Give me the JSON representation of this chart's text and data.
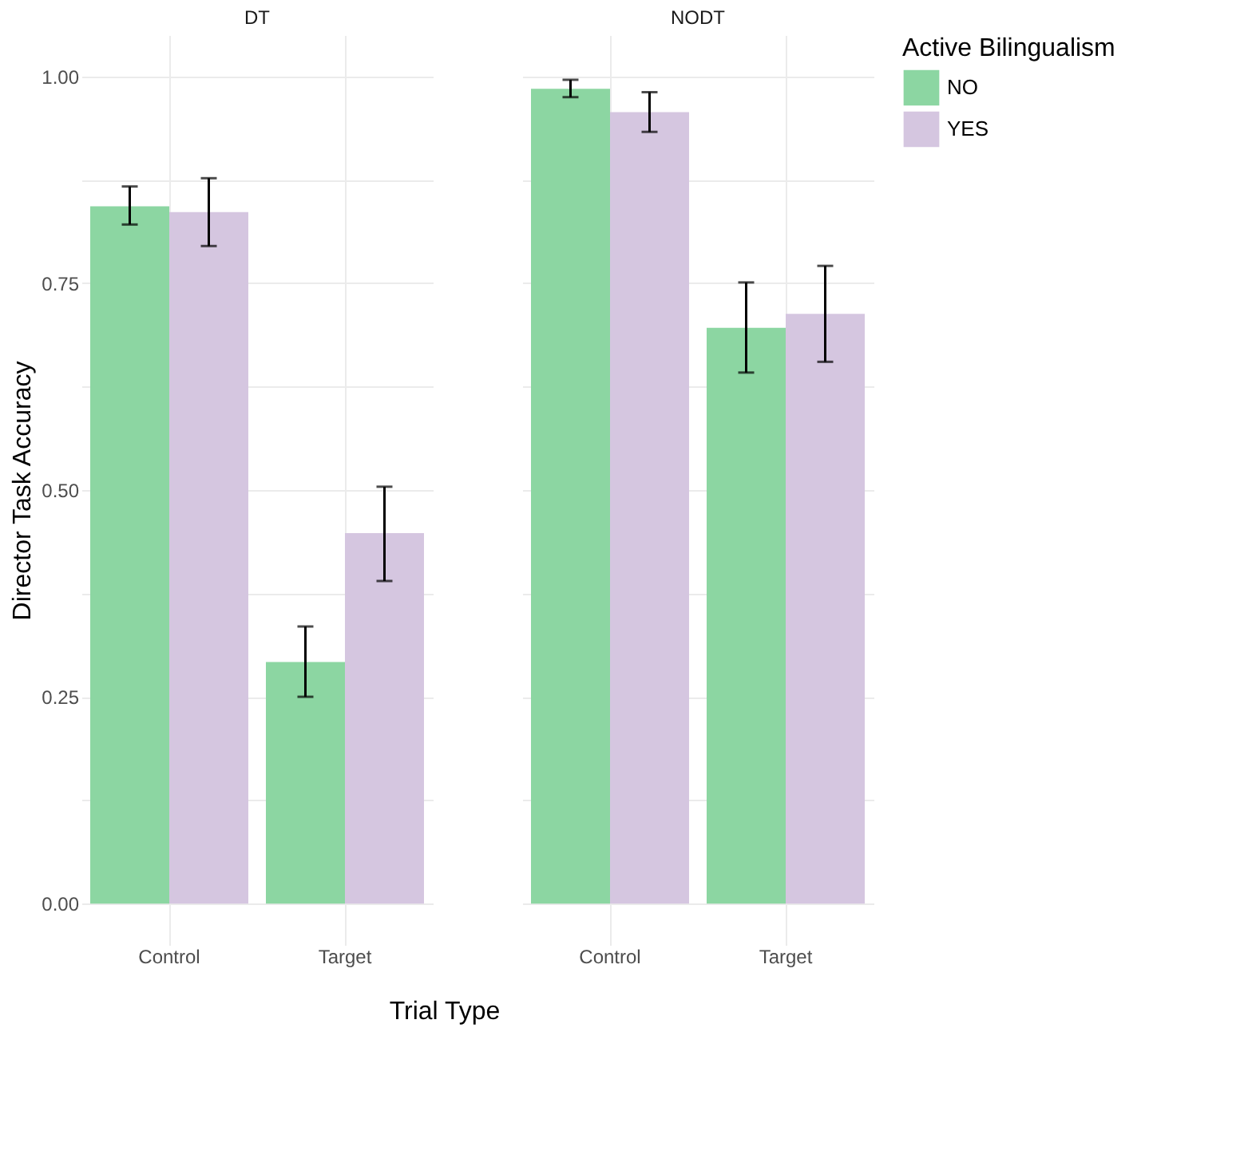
{
  "chart_data": [
    {
      "type": "bar",
      "title": "DT",
      "ylabel": "Director Task Accuracy",
      "xlabel": "Trial Type",
      "categories": [
        "Control",
        "Target"
      ],
      "series": [
        {
          "name": "NO",
          "color": "#8cd6a2",
          "values": [
            0.843,
            0.292
          ],
          "errors": [
            [
              0.821,
              0.867
            ],
            [
              0.25,
              0.335
            ]
          ]
        },
        {
          "name": "YES",
          "color": "#d5c6e0",
          "values": [
            0.836,
            0.448
          ],
          "errors": [
            [
              0.795,
              0.877
            ],
            [
              0.39,
              0.504
            ]
          ]
        }
      ],
      "ylim": [
        -0.05,
        1.05
      ],
      "yticks": [
        {
          "value": 0,
          "label": "0.00"
        },
        {
          "value": 0.125,
          "label": null
        },
        {
          "value": 0.25,
          "label": "0.25"
        },
        {
          "value": 0.375,
          "label": null
        },
        {
          "value": 0.5,
          "label": "0.50"
        },
        {
          "value": 0.625,
          "label": null
        },
        {
          "value": 0.75,
          "label": "0.75"
        },
        {
          "value": 0.875,
          "label": null
        },
        {
          "value": 1,
          "label": "1.00"
        }
      ],
      "grid": true,
      "legend": false
    },
    {
      "type": "bar",
      "title": "NODT",
      "legend_title": "Active Bilingualism",
      "categories": [
        "Control",
        "Target"
      ],
      "series": [
        {
          "name": "NO",
          "color": "#8cd6a2",
          "values": [
            0.985,
            0.696
          ],
          "errors": [
            [
              0.975,
              0.996
            ],
            [
              0.642,
              0.751
            ]
          ]
        },
        {
          "name": "YES",
          "color": "#d5c6e0",
          "values": [
            0.957,
            0.713
          ],
          "errors": [
            [
              0.933,
              0.981
            ],
            [
              0.655,
              0.771
            ]
          ]
        }
      ],
      "ylim": [
        -0.05,
        1.05
      ],
      "yticks": [
        {
          "value": 0,
          "label": null
        },
        {
          "value": 0.125,
          "label": null
        },
        {
          "value": 0.25,
          "label": null
        },
        {
          "value": 0.375,
          "label": null
        },
        {
          "value": 0.5,
          "label": null
        },
        {
          "value": 0.625,
          "label": null
        },
        {
          "value": 0.75,
          "label": null
        },
        {
          "value": 0.875,
          "label": null
        },
        {
          "value": 1,
          "label": null
        }
      ],
      "tick_labels": "x",
      "grid": true,
      "legend": "right"
    }
  ]
}
